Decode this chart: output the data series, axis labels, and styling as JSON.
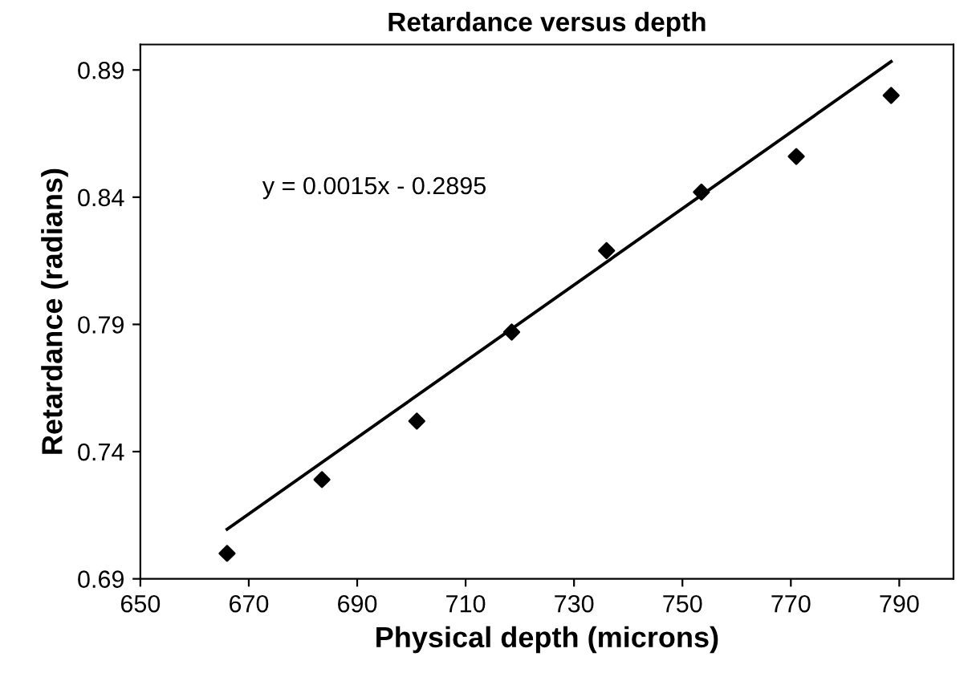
{
  "chart_data": {
    "type": "scatter",
    "title": "Retardance versus depth",
    "xlabel": "Physical depth (microns)",
    "ylabel": "Retardance (radians)",
    "series": [
      {
        "color": "#000000",
        "marker": "diamond",
        "x": [
          666,
          683.5,
          701,
          718.5,
          736,
          753.5,
          771,
          788.5
        ],
        "values": [
          0.7,
          0.729,
          0.752,
          0.787,
          0.819,
          0.842,
          0.856,
          0.88
        ]
      },
      {
        "type": "line",
        "color": "#000000",
        "marker": "none",
        "line_style": "solid",
        "x": [
          666,
          788.5
        ],
        "values": [
          0.7095,
          0.8933
        ]
      }
    ],
    "annotations": [
      "y = 0.0015x - 0.2895"
    ],
    "xlim": [
      650,
      800
    ],
    "xticks": [
      650,
      670,
      690,
      710,
      730,
      750,
      770,
      790
    ],
    "ylim": [
      0.69,
      0.9
    ],
    "yticks": [
      0.69,
      0.74,
      0.79,
      0.84,
      0.89
    ],
    "grid": false,
    "legend": false
  }
}
